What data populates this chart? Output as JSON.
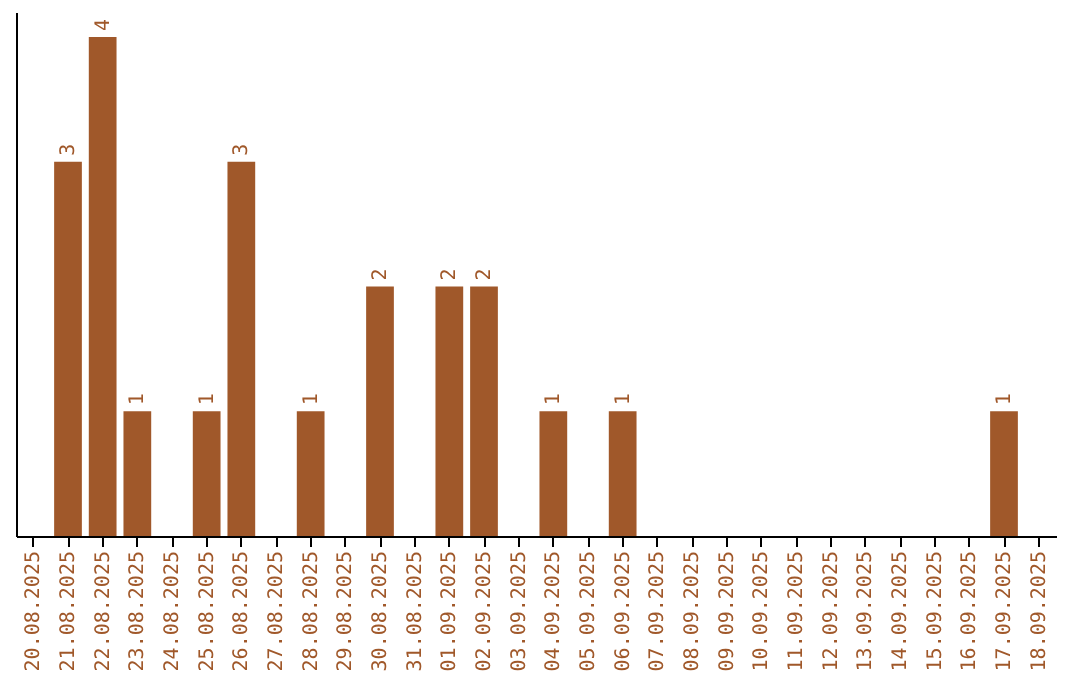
{
  "chart_data": {
    "type": "bar",
    "categories": [
      "20.08.2025",
      "21.08.2025",
      "22.08.2025",
      "23.08.2025",
      "24.08.2025",
      "25.08.2025",
      "26.08.2025",
      "27.08.2025",
      "28.08.2025",
      "29.08.2025",
      "30.08.2025",
      "31.08.2025",
      "01.09.2025",
      "02.09.2025",
      "03.09.2025",
      "04.09.2025",
      "05.09.2025",
      "06.09.2025",
      "07.09.2025",
      "08.09.2025",
      "09.09.2025",
      "10.09.2025",
      "11.09.2025",
      "12.09.2025",
      "13.09.2025",
      "14.09.2025",
      "15.09.2025",
      "16.09.2025",
      "17.09.2025",
      "18.09.2025"
    ],
    "values": [
      0,
      3,
      4,
      1,
      0,
      1,
      3,
      0,
      1,
      0,
      2,
      0,
      2,
      2,
      0,
      1,
      0,
      1,
      0,
      0,
      0,
      0,
      0,
      0,
      0,
      0,
      0,
      0,
      1,
      0
    ],
    "value_labels": [
      null,
      "3",
      "4",
      "1",
      null,
      "1",
      "3",
      null,
      "1",
      null,
      "2",
      null,
      "2",
      "2",
      null,
      "1",
      null,
      "1",
      null,
      null,
      null,
      null,
      null,
      null,
      null,
      null,
      null,
      null,
      "1",
      null
    ],
    "color": "#a0582a",
    "ylim": [
      0,
      4.2
    ],
    "tick_labels": "x",
    "grid": false
  }
}
